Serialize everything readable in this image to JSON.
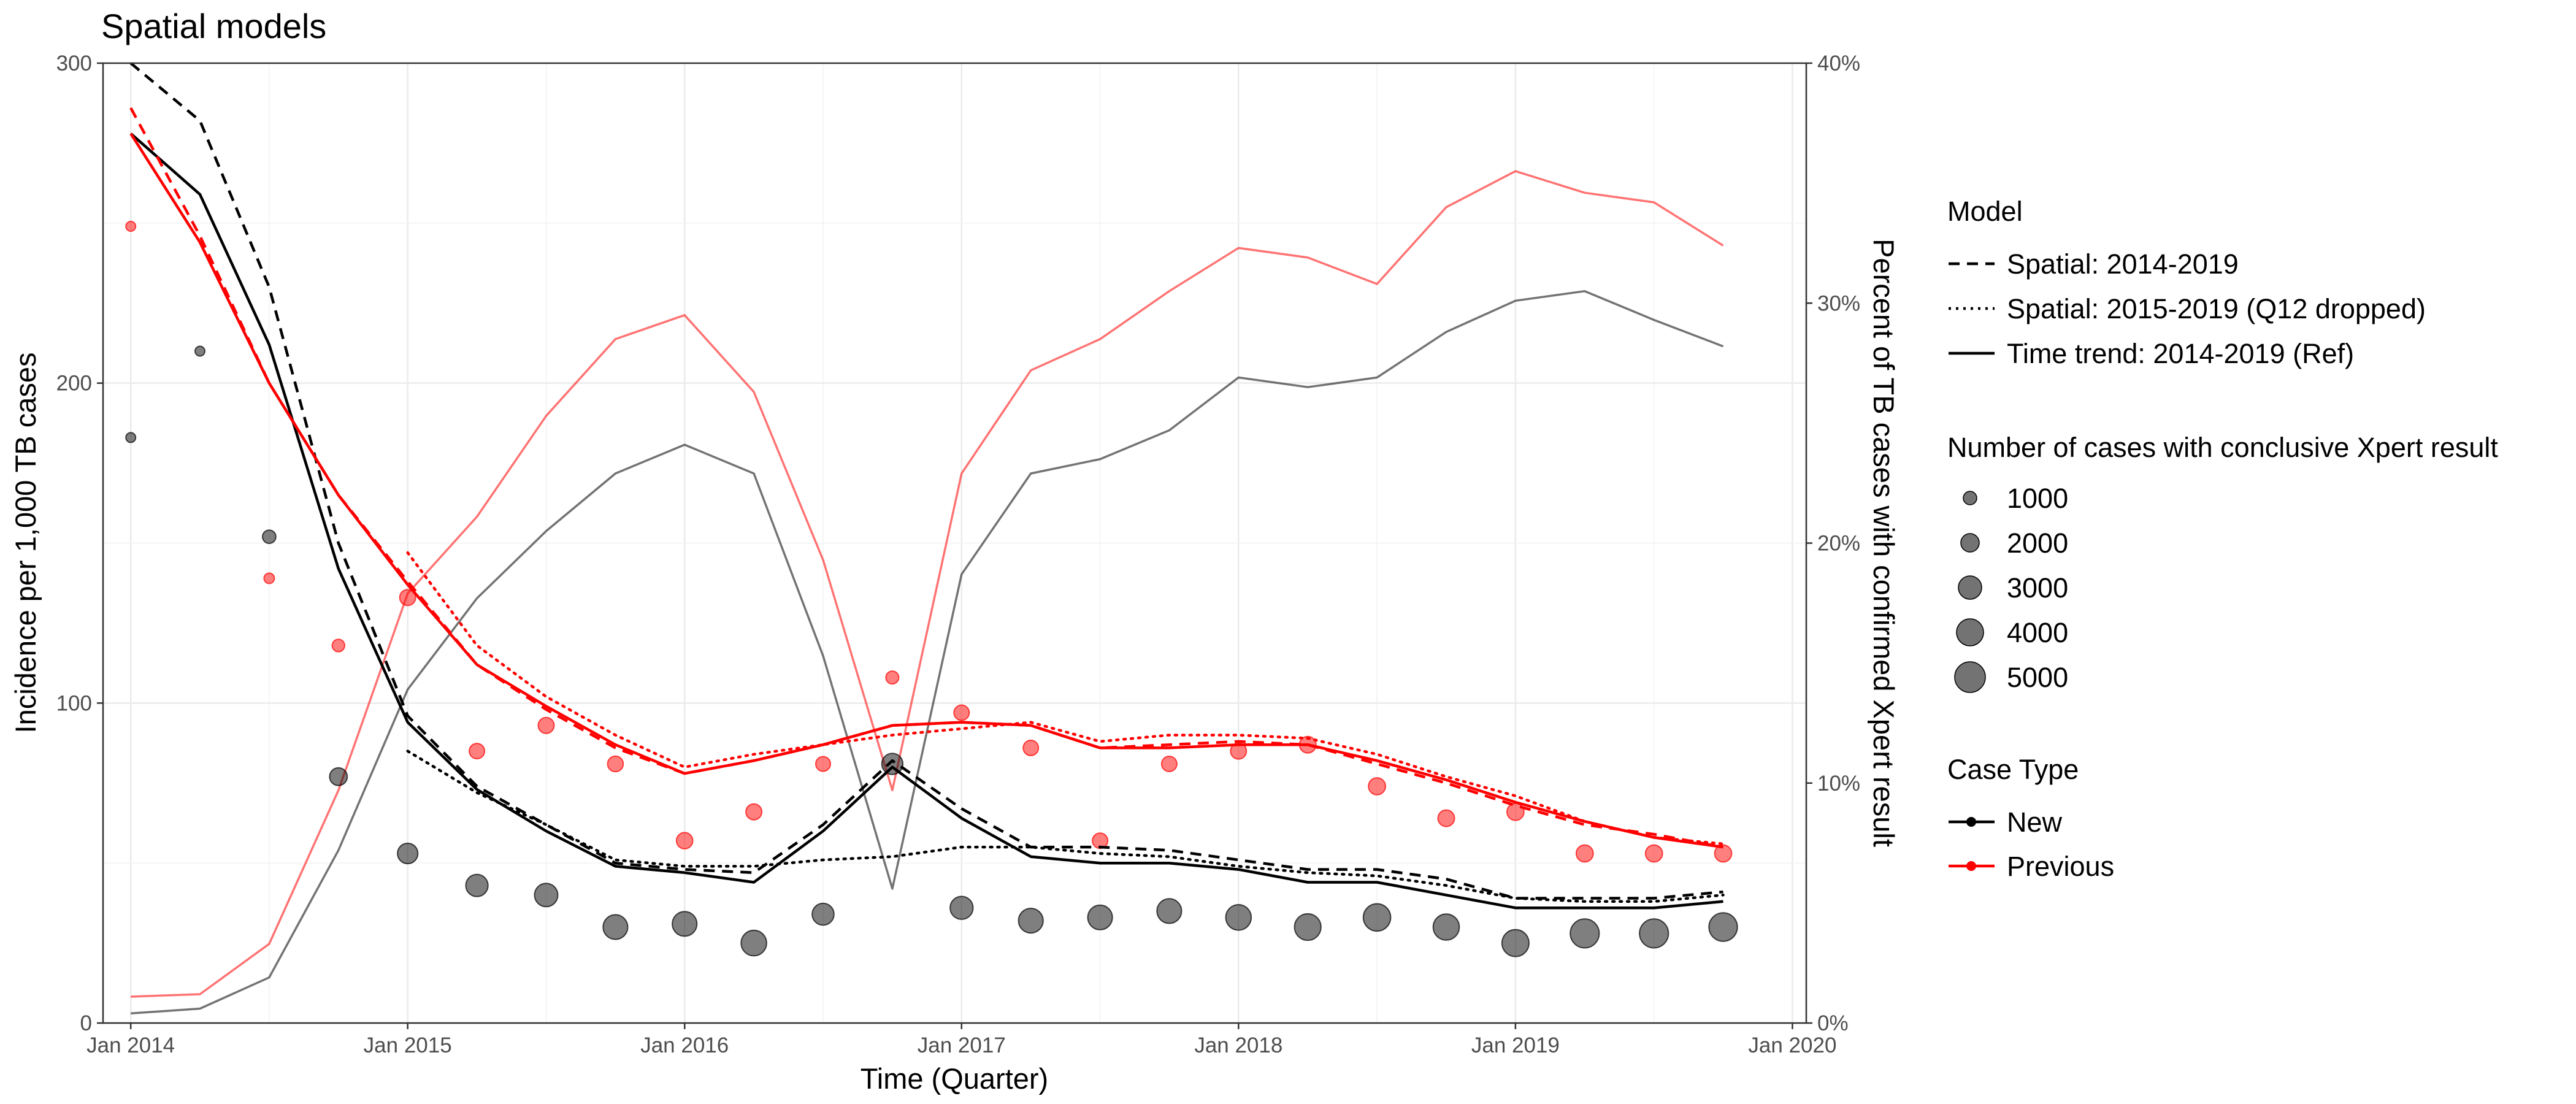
{
  "chart_data": {
    "type": "line",
    "title": "Spatial models",
    "xlabel": "Time (Quarter)",
    "ylabel": "Incidence per 1,000 TB cases",
    "y2label": "Percent of TB cases with confirmed Xpert result",
    "x_ticks": [
      "Jan 2014",
      "Jan 2015",
      "Jan 2016",
      "Jan 2017",
      "Jan 2018",
      "Jan 2019",
      "Jan 2020"
    ],
    "y_ticks": [
      "0",
      "100",
      "200",
      "300"
    ],
    "y2_ticks": [
      "0%",
      "10%",
      "20%",
      "30%",
      "40%"
    ],
    "xlim": [
      2013.9,
      2020.05
    ],
    "ylim": [
      0,
      300
    ],
    "y2lim": [
      0,
      40
    ],
    "grid": true,
    "legend_placement": "right",
    "x": [
      2014.0,
      2014.25,
      2014.5,
      2014.75,
      2015.0,
      2015.25,
      2015.5,
      2015.75,
      2016.0,
      2016.25,
      2016.5,
      2016.75,
      2017.0,
      2017.25,
      2017.5,
      2017.75,
      2018.0,
      2018.25,
      2018.5,
      2018.75,
      2019.0,
      2019.25,
      2019.5,
      2019.75
    ],
    "colors": {
      "New": "#000000",
      "Previous": "#ff0000"
    },
    "incidence_series": [
      {
        "case_type": "New",
        "model": "Spatial: 2014-2019",
        "linestyle": "dashed",
        "values": [
          300,
          282,
          230,
          150,
          96,
          74,
          62,
          50,
          48,
          47,
          62,
          82,
          67,
          55,
          55,
          54,
          51,
          48,
          48,
          45,
          39,
          39,
          39,
          41
        ]
      },
      {
        "case_type": "New",
        "model": "Spatial: 2015-2019 (Q12 dropped)",
        "linestyle": "dotted",
        "values": [
          null,
          null,
          null,
          null,
          85,
          72,
          62,
          51,
          49,
          49,
          51,
          52,
          55,
          55,
          53,
          52,
          49,
          47,
          46,
          43,
          39,
          38,
          38,
          40
        ]
      },
      {
        "case_type": "New",
        "model": "Time trend: 2014-2019 (Ref)",
        "linestyle": "solid",
        "values": [
          278,
          259,
          212,
          142,
          94,
          73,
          60,
          49,
          47,
          44,
          60,
          80,
          64,
          52,
          50,
          50,
          48,
          44,
          44,
          40,
          36,
          36,
          36,
          38
        ]
      },
      {
        "case_type": "Previous",
        "model": "Spatial: 2014-2019",
        "linestyle": "dashed",
        "values": [
          286,
          246,
          200,
          165,
          138,
          112,
          98,
          86,
          78,
          82,
          87,
          93,
          94,
          93,
          86,
          87,
          88,
          87,
          81,
          75,
          68,
          62,
          59,
          55
        ]
      },
      {
        "case_type": "Previous",
        "model": "Spatial: 2015-2019 (Q12 dropped)",
        "linestyle": "dotted",
        "values": [
          null,
          null,
          null,
          null,
          147,
          118,
          102,
          90,
          80,
          84,
          87,
          90,
          92,
          94,
          88,
          90,
          90,
          89,
          84,
          77,
          71,
          63,
          58,
          56
        ]
      },
      {
        "case_type": "Previous",
        "model": "Time trend: 2014-2019 (Ref)",
        "linestyle": "solid",
        "values": [
          278,
          244,
          200,
          165,
          137,
          112,
          99,
          87,
          78,
          82,
          87,
          93,
          94,
          93,
          86,
          86,
          87,
          87,
          82,
          76,
          69,
          63,
          58,
          55
        ]
      }
    ],
    "percent_series": [
      {
        "case_type": "New",
        "unit": "percent",
        "values": [
          0.4,
          0.6,
          1.9,
          7.2,
          13.9,
          17.7,
          20.5,
          22.9,
          24.1,
          22.9,
          15.3,
          5.6,
          18.7,
          22.9,
          23.5,
          24.7,
          26.9,
          26.5,
          26.9,
          28.8,
          30.1,
          30.5,
          29.3,
          28.2
        ]
      },
      {
        "case_type": "Previous",
        "unit": "percent",
        "values": [
          1.1,
          1.2,
          3.3,
          9.7,
          17.9,
          21.1,
          25.3,
          28.5,
          29.5,
          26.3,
          19.3,
          9.7,
          22.9,
          27.2,
          28.5,
          30.5,
          32.3,
          31.9,
          30.8,
          34.0,
          35.5,
          34.6,
          34.2,
          32.4
        ]
      }
    ],
    "observed_points": [
      {
        "case_type": "New",
        "values": [
          183,
          210,
          152,
          77,
          53,
          43,
          40,
          30,
          31,
          25,
          34,
          81,
          36,
          32,
          33,
          35,
          33,
          30,
          33,
          30,
          25,
          28,
          28,
          30
        ],
        "n_cases": [
          150,
          150,
          500,
          1200,
          1800,
          2300,
          2600,
          3000,
          3000,
          3300,
          2200,
          2000,
          2500,
          3000,
          3000,
          3000,
          3300,
          3600,
          3900,
          3500,
          3800,
          4500,
          4500,
          4300
        ]
      },
      {
        "case_type": "Previous",
        "values": [
          249,
          null,
          139,
          118,
          133,
          85,
          93,
          81,
          57,
          66,
          81,
          108,
          97,
          86,
          57,
          81,
          85,
          87,
          74,
          64,
          66,
          53,
          53,
          53
        ],
        "n_cases": [
          150,
          null,
          200,
          400,
          900,
          800,
          900,
          850,
          950,
          900,
          700,
          450,
          800,
          800,
          800,
          800,
          900,
          1000,
          1100,
          1000,
          1100,
          1100,
          1100,
          1100
        ]
      }
    ],
    "legend": {
      "model": {
        "title": "Model",
        "entries": [
          {
            "label": "Spatial: 2014-2019",
            "linestyle": "dashed"
          },
          {
            "label": "Spatial: 2015-2019 (Q12 dropped)",
            "linestyle": "dotted"
          },
          {
            "label": "Time trend: 2014-2019 (Ref)",
            "linestyle": "solid"
          }
        ]
      },
      "size": {
        "title": "Number of cases with conclusive Xpert result",
        "entries": [
          {
            "label": "1000",
            "value": 1000
          },
          {
            "label": "2000",
            "value": 2000
          },
          {
            "label": "3000",
            "value": 3000
          },
          {
            "label": "4000",
            "value": 4000
          },
          {
            "label": "5000",
            "value": 5000
          }
        ]
      },
      "case_type": {
        "title": "Case Type",
        "entries": [
          {
            "label": "New",
            "color": "#000000"
          },
          {
            "label": "Previous",
            "color": "#ff0000"
          }
        ]
      }
    }
  }
}
